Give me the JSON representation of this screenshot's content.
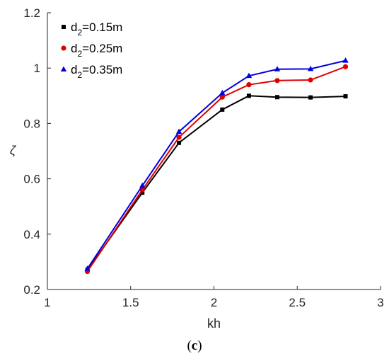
{
  "chart_data": {
    "type": "line",
    "xlabel": "kh",
    "ylabel": "ζ",
    "xlim": [
      1,
      3
    ],
    "ylim": [
      0.2,
      1.2
    ],
    "xticks": [
      1,
      1.5,
      2,
      2.5,
      3
    ],
    "yticks": [
      0.2,
      0.4,
      0.6,
      0.8,
      1,
      1.2
    ],
    "xtick_labels": [
      "1",
      "1.5",
      "2",
      "2.5",
      "3"
    ],
    "ytick_labels": [
      "0.2",
      "0.4",
      "0.6",
      "0.8",
      "1",
      "1.2"
    ],
    "grid": false,
    "legend_position": "top-left",
    "x": [
      1.24,
      1.57,
      1.79,
      2.05,
      2.21,
      2.38,
      2.58,
      2.79
    ],
    "series": [
      {
        "name": "d2=0.15m",
        "label_main": "d",
        "label_sub": "2",
        "label_rest": "=0.15m",
        "color": "#000000",
        "marker": "square",
        "values": [
          0.27,
          0.55,
          0.73,
          0.85,
          0.9,
          0.895,
          0.894,
          0.898
        ]
      },
      {
        "name": "d2=0.25m",
        "label_main": "d",
        "label_sub": "2",
        "label_rest": "=0.25m",
        "color": "#e00000",
        "marker": "circle",
        "values": [
          0.265,
          0.56,
          0.75,
          0.895,
          0.94,
          0.955,
          0.957,
          1.005
        ]
      },
      {
        "name": "d2=0.35m",
        "label_main": "d",
        "label_sub": "2",
        "label_rest": "=0.35m",
        "color": "#0000e0",
        "marker": "triangle",
        "values": [
          0.275,
          0.575,
          0.77,
          0.91,
          0.972,
          0.996,
          0.997,
          1.027
        ]
      }
    ]
  },
  "caption": {
    "open": "(",
    "letter": "c",
    "close": ")"
  }
}
